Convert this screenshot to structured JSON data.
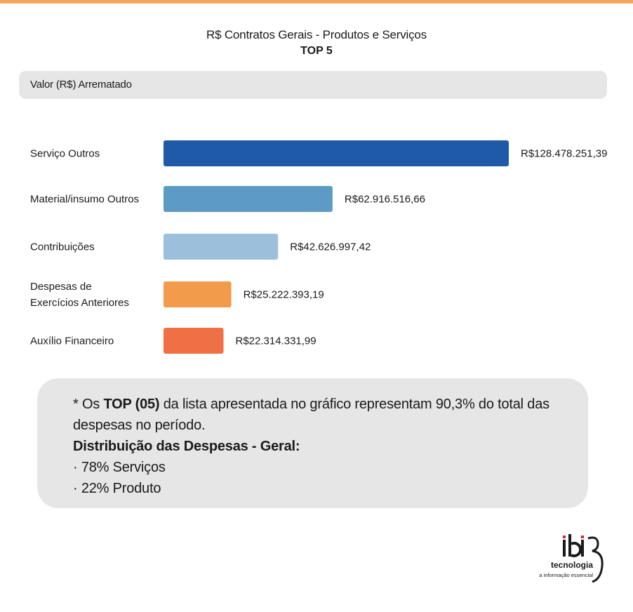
{
  "header": {
    "title": "R$ Contratos Gerais - Produtos e Serviços",
    "subtitle": "TOP 5"
  },
  "metric": {
    "label": "Valor (R$) Arrematado"
  },
  "chart_data": {
    "type": "bar",
    "orientation": "horizontal",
    "title": "R$ Contratos Gerais - Produtos e Serviços",
    "subtitle": "TOP 5",
    "xlabel": "",
    "ylabel": "",
    "grid": false,
    "xlim": [
      0,
      128478251.39
    ],
    "categories": [
      [
        "Serviço Outros"
      ],
      [
        "Material/insumo Outros"
      ],
      [
        "Contribuições"
      ],
      [
        "Despesas de",
        "Exercícios Anteriores"
      ],
      [
        "Auxílio Financeiro"
      ]
    ],
    "values": [
      128478251.39,
      62916516.66,
      42626997.42,
      25222393.19,
      22314331.99
    ],
    "value_labels": [
      "R$128.478.251,39",
      "R$62.916.516,66",
      "R$42.626.997,42",
      "R$25.222.393,19",
      "R$22.314.331,99"
    ],
    "colors": [
      "#1f5aa8",
      "#5d9bc4",
      "#9cc0db",
      "#f29b4b",
      "#ef7045"
    ]
  },
  "note": {
    "line1_prefix": "* Os ",
    "line1_bold": "TOP (05)",
    "line1_rest": " da lista apresentada no gráfico representam 90,3% do total das",
    "line2": "despesas no período.",
    "heading": "Distribuição das Despesas - Geral:",
    "items": [
      "·  78% Serviços",
      "·  22% Produto"
    ]
  },
  "logo": {
    "brand": "ibi",
    "sub": "tecnologia",
    "tagline": "a informação essencial",
    "colors": {
      "dot": "#d7262e",
      "text": "#1a1a1a"
    }
  }
}
